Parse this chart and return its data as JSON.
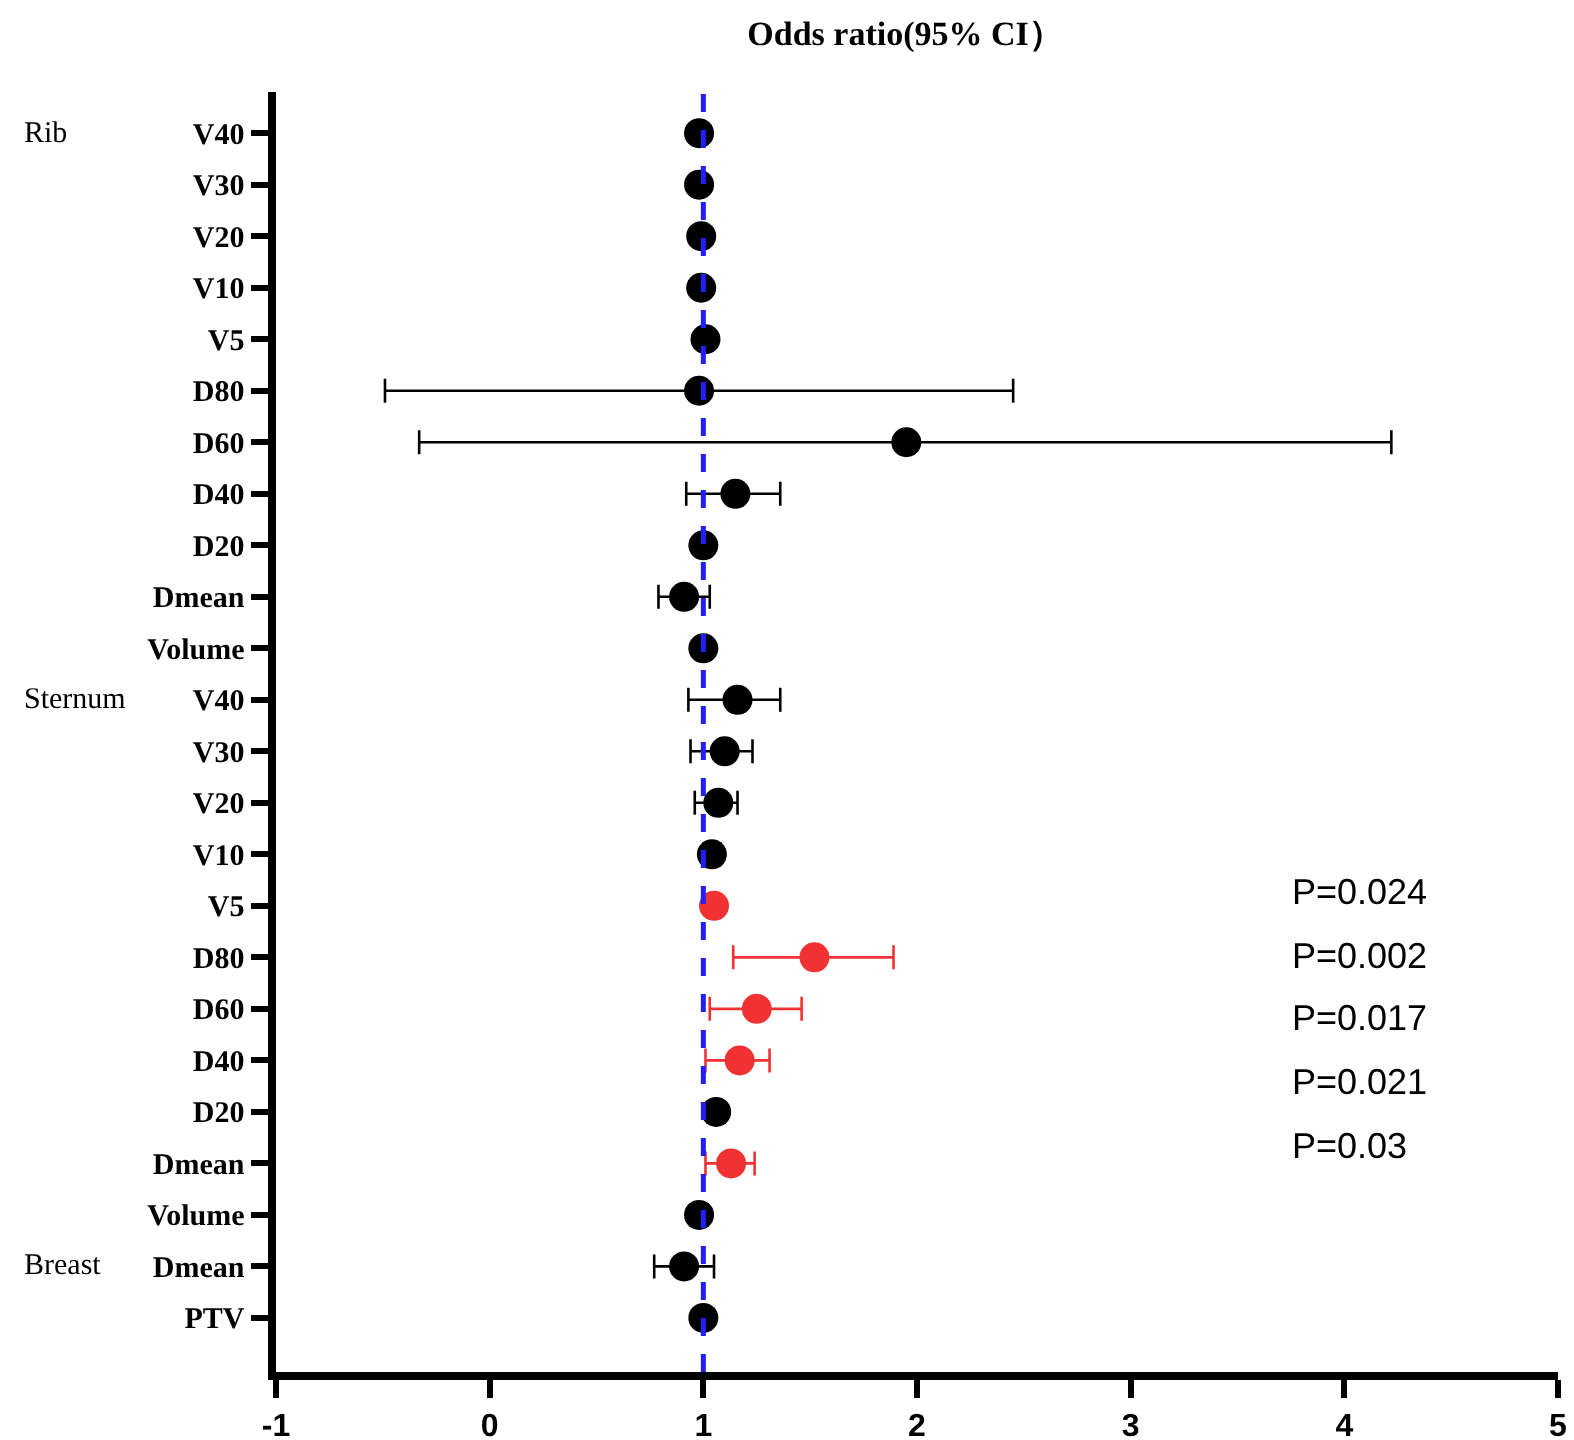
{
  "chart_data": {
    "type": "scatter",
    "orientation": "horizontal",
    "title": "Odds ratio(95% CI）",
    "categories": [
      "V40",
      "V30",
      "V20",
      "V10",
      "V5",
      "D80",
      "D60",
      "D40",
      "D20",
      "Dmean",
      "Volume",
      "V40",
      "V30",
      "V20",
      "V10",
      "V5",
      "D80",
      "D60",
      "D40",
      "D20",
      "Dmean",
      "Volume",
      "Dmean",
      "PTV"
    ],
    "y2_categories": [
      "Rib",
      null,
      null,
      null,
      null,
      null,
      null,
      null,
      null,
      null,
      null,
      "Sternum",
      null,
      null,
      null,
      null,
      null,
      null,
      null,
      null,
      null,
      null,
      "Breast",
      null
    ],
    "series": [
      {
        "color": "#000000",
        "values": [
          0.98,
          0.98,
          0.99,
          0.99,
          1.01,
          0.98,
          1.95,
          1.15,
          1.0,
          0.91,
          1.0,
          1.16,
          1.1,
          1.07,
          1.04,
          null,
          null,
          null,
          null,
          1.06,
          null,
          0.98,
          0.91,
          1.0
        ],
        "errors": [
          null,
          null,
          null,
          null,
          null,
          [
            -0.49,
            2.45
          ],
          [
            -0.33,
            4.22
          ],
          [
            0.92,
            1.36
          ],
          null,
          [
            0.79,
            1.03
          ],
          null,
          [
            0.93,
            1.36
          ],
          [
            0.94,
            1.23
          ],
          [
            0.96,
            1.16
          ],
          [
            1.0,
            1.08
          ],
          null,
          null,
          null,
          null,
          [
            1.02,
            1.1
          ],
          null,
          [
            0.94,
            1.02
          ],
          [
            0.77,
            1.05
          ],
          null
        ]
      },
      {
        "color": "#f03232",
        "values": [
          null,
          null,
          null,
          null,
          null,
          null,
          null,
          null,
          null,
          null,
          null,
          null,
          null,
          null,
          null,
          1.05,
          1.52,
          1.25,
          1.17,
          null,
          1.13,
          null,
          null,
          null
        ],
        "errors": [
          null,
          null,
          null,
          null,
          null,
          null,
          null,
          null,
          null,
          null,
          null,
          null,
          null,
          null,
          null,
          null,
          [
            1.14,
            1.89
          ],
          [
            1.03,
            1.46
          ],
          [
            1.01,
            1.31
          ],
          null,
          [
            1.01,
            1.24
          ],
          null,
          null,
          null
        ]
      }
    ],
    "annotations": [
      "P=0.024",
      "P=0.002",
      "P=0.017",
      "P=0.021",
      "P=0.03"
    ],
    "xlim": [
      -1,
      5
    ],
    "xticks": [
      -1,
      0,
      1,
      2,
      3,
      4,
      5
    ],
    "marker": "circle",
    "ref_lines": [
      {
        "axis": "x",
        "value": 1,
        "color": "#1f1fff",
        "line_style": "dashed"
      }
    ]
  }
}
